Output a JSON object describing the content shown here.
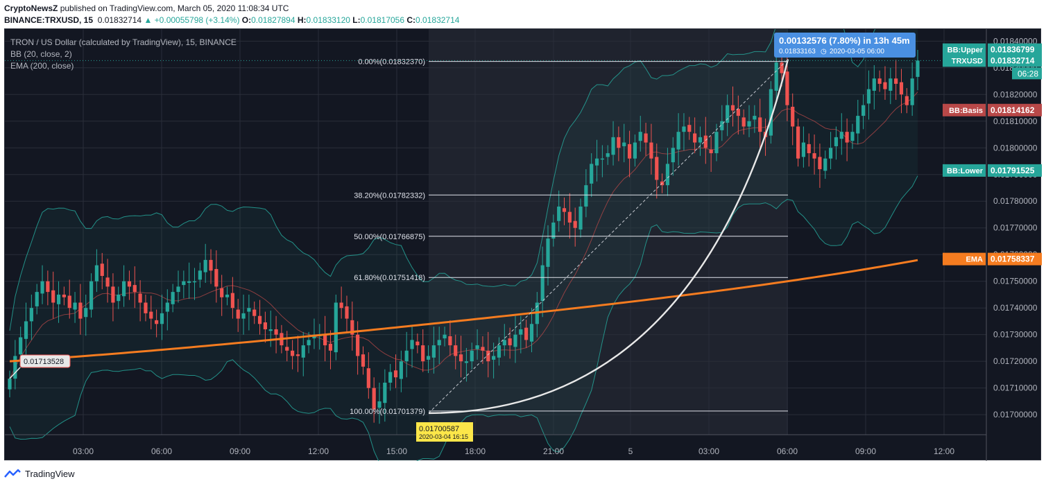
{
  "header": {
    "author": "CryptoNewsZ",
    "published_text": "published on TradingView.com, March 05, 2020 11:08:34 UTC",
    "symbol": "BINANCE:TRXUSD, 15",
    "last": "0.01832714",
    "change": "+0.00055798 (+3.14%)",
    "o_label": "O:",
    "o": "0.01827894",
    "h_label": "H:",
    "h": "0.01833120",
    "l_label": "L:",
    "l": "0.01817056",
    "c_label": "C:",
    "c": "0.01832714"
  },
  "legend": {
    "title": "TRON / US Dollar (calculated by TradingView), 15, BINANCE",
    "bb": "BB (20, close, 2)",
    "ema": "EMA (200, close)"
  },
  "footer": {
    "brand": "TradingView",
    "icon": "tradingview-logo-icon"
  },
  "colors": {
    "background": "#131722",
    "grid": "#2a2e39",
    "up": "#26a69a",
    "down": "#ef5350",
    "ema": "#f57c20",
    "bb_band": "#26a69a",
    "bb_basis": "#b84848",
    "fib": "#e0e3eb",
    "projection": "#4a90e2",
    "label_yellow": "#fce649"
  },
  "chart_data": {
    "type": "candlestick",
    "title": "TRON / US Dollar (calculated by TradingView), 15, BINANCE",
    "x_ticks": [
      "03:00",
      "06:00",
      "09:00",
      "12:00",
      "15:00",
      "18:00",
      "21:00",
      "5",
      "03:00",
      "06:00",
      "09:00",
      "12:00"
    ],
    "y_ticks": [
      "0.01840000",
      "0.01830000",
      "0.01820000",
      "0.01810000",
      "0.01800000",
      "0.01790000",
      "0.01780000",
      "0.01770000",
      "0.01760000",
      "0.01750000",
      "0.01740000",
      "0.01730000",
      "0.01720000",
      "0.01710000",
      "0.01700000"
    ],
    "ylim": [
      0.016925,
      0.018445
    ],
    "price_series": [
      0.017135,
      0.01722,
      0.01729,
      0.01735,
      0.0174,
      0.01746,
      0.0175,
      0.01746,
      0.01742,
      0.01745,
      0.01744,
      0.0174,
      0.01742,
      0.01736,
      0.0174,
      0.0175,
      0.01756,
      0.01752,
      0.01748,
      0.01742,
      0.01745,
      0.0175,
      0.01748,
      0.01746,
      0.01742,
      0.01738,
      0.01736,
      0.01734,
      0.01738,
      0.01742,
      0.01746,
      0.01748,
      0.0175,
      0.0175,
      0.0175,
      0.01754,
      0.01758,
      0.01754,
      0.01748,
      0.01744,
      0.01745,
      0.0174,
      0.01736,
      0.01738,
      0.0174,
      0.01737,
      0.01734,
      0.01732,
      0.01732,
      0.0173,
      0.01726,
      0.01724,
      0.01722,
      0.01722,
      0.01726,
      0.01728,
      0.0173,
      0.0173,
      0.01726,
      0.01724,
      0.01742,
      0.0174,
      0.01736,
      0.0173,
      0.01722,
      0.01718,
      0.0171,
      0.01702,
      0.01705,
      0.01712,
      0.01716,
      0.01714,
      0.0172,
      0.01724,
      0.01728,
      0.01726,
      0.0172,
      0.01722,
      0.01726,
      0.01728,
      0.0173,
      0.01726,
      0.01722,
      0.0172,
      0.0172,
      0.01724,
      0.01726,
      0.01724,
      0.0172,
      0.01722,
      0.01726,
      0.01728,
      0.01726,
      0.0173,
      0.01732,
      0.01728,
      0.01734,
      0.01742,
      0.01756,
      0.01766,
      0.01772,
      0.01778,
      0.01776,
      0.01772,
      0.0177,
      0.01778,
      0.01786,
      0.01794,
      0.01796,
      0.01796,
      0.01798,
      0.01804,
      0.018,
      0.01802,
      0.01796,
      0.01802,
      0.01806,
      0.01802,
      0.01796,
      0.01788,
      0.01786,
      0.01794,
      0.018,
      0.01806,
      0.01808,
      0.01806,
      0.01802,
      0.01804,
      0.018,
      0.01798,
      0.01806,
      0.0181,
      0.01816,
      0.01814,
      0.01812,
      0.01808,
      0.0181,
      0.01812,
      0.01806,
      0.01804,
      0.01822,
      0.01832,
      0.01828,
      0.01816,
      0.01808,
      0.01796,
      0.01802,
      0.01798,
      0.01796,
      0.01792,
      0.01796,
      0.018,
      0.01804,
      0.01806,
      0.01802,
      0.01806,
      0.01812,
      0.01816,
      0.01822,
      0.01826,
      0.01824,
      0.01822,
      0.01826,
      0.01824,
      0.0182,
      0.01816,
      0.01826,
      0.01832714
    ],
    "ema_endpoints": [
      0.0172,
      0.01758337
    ],
    "bollinger_labels": {
      "upper_label": "BB:Upper",
      "upper": "0.01836799",
      "basis_label": "BB:Basis",
      "basis": "0.01814162",
      "lower_label": "BB:Lower",
      "lower": "0.01791525"
    },
    "price_label": "TRXUSD",
    "price_value": "0.01832714",
    "countdown": "06:28",
    "ema_label": "EMA",
    "ema_value": "0.01758337",
    "fibonacci": [
      {
        "label": "0.00%(0.01832370)",
        "value": 0.0183237
      },
      {
        "label": "38.20%(0.01782332)",
        "value": 0.01782332
      },
      {
        "label": "50.00%(0.01766875)",
        "value": 0.01766875
      },
      {
        "label": "61.80%(0.01751418)",
        "value": 0.01751418
      },
      {
        "label": "100.00%(0.01701379)",
        "value": 0.01701379
      }
    ],
    "annotations": {
      "range_change": "0.00132576 (7.80%) in 13h 45m",
      "range_price": "0.01833163",
      "range_date": "2020-03-05  06:00",
      "low_price": "0.01700587",
      "low_date": "2020-03-04 16:15",
      "start_price": "0.01713528"
    }
  }
}
